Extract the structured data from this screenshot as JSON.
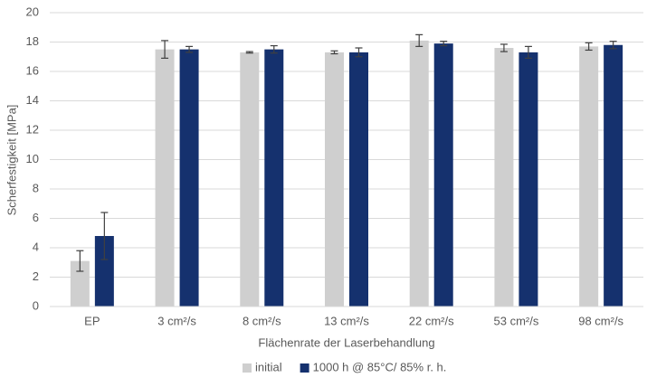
{
  "chart_data": {
    "type": "bar",
    "y_label": "Scherfestigkeit [MPa]",
    "x_label": "Flächenrate der Laserbehandlung",
    "categories": [
      "EP",
      "3 cm²/s",
      "8 cm²/s",
      "13 cm²/s",
      "22 cm²/s",
      "53 cm²/s",
      "98 cm²/s"
    ],
    "series": [
      {
        "name": "initial",
        "color": "#cfcfcf",
        "values": [
          3.1,
          17.5,
          17.3,
          17.3,
          18.1,
          17.6,
          17.7
        ],
        "errors": [
          0.7,
          0.6,
          0.05,
          0.1,
          0.4,
          0.25,
          0.25
        ]
      },
      {
        "name": "1000 h @ 85°C/ 85% r. h.",
        "color": "#15316e",
        "values": [
          4.8,
          17.5,
          17.5,
          17.3,
          17.9,
          17.3,
          17.8
        ],
        "errors": [
          1.6,
          0.2,
          0.25,
          0.3,
          0.15,
          0.4,
          0.25
        ]
      }
    ],
    "ylim": [
      0,
      20
    ],
    "yticks": [
      0,
      2,
      4,
      6,
      8,
      10,
      12,
      14,
      16,
      18,
      20
    ],
    "grid": true,
    "legend": "bottom"
  }
}
